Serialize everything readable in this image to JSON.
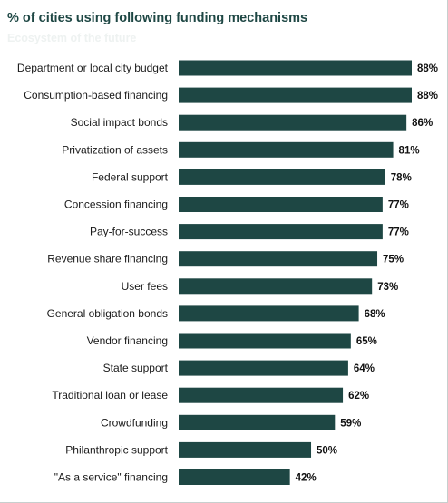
{
  "chart_data": {
    "type": "bar",
    "orientation": "horizontal",
    "title": "% of cities using following funding mechanisms",
    "subtitle": "Ecosystem of the future",
    "categories": [
      "Department or local city budget",
      "Consumption-based financing",
      "Social impact bonds",
      "Privatization of assets",
      "Federal support",
      "Concession financing",
      "Pay-for-success",
      "Revenue share financing",
      "User fees",
      "General obligation bonds",
      "Vendor financing",
      "State support",
      "Traditional loan or lease",
      "Crowdfunding",
      "Philanthropic support",
      "\"As a service\" financing"
    ],
    "values": [
      88,
      88,
      86,
      81,
      78,
      77,
      77,
      75,
      73,
      68,
      65,
      64,
      62,
      59,
      50,
      42
    ],
    "value_labels": [
      "88%",
      "88%",
      "86%",
      "81%",
      "78%",
      "77%",
      "77%",
      "75%",
      "73%",
      "68%",
      "65%",
      "64%",
      "62%",
      "59%",
      "50%",
      "42%"
    ],
    "xlabel": "",
    "ylabel": "",
    "xlim": [
      0,
      88
    ],
    "grid": false,
    "legend": "none",
    "colors": {
      "bar": "#1e4744",
      "title": "#1e4744"
    }
  }
}
